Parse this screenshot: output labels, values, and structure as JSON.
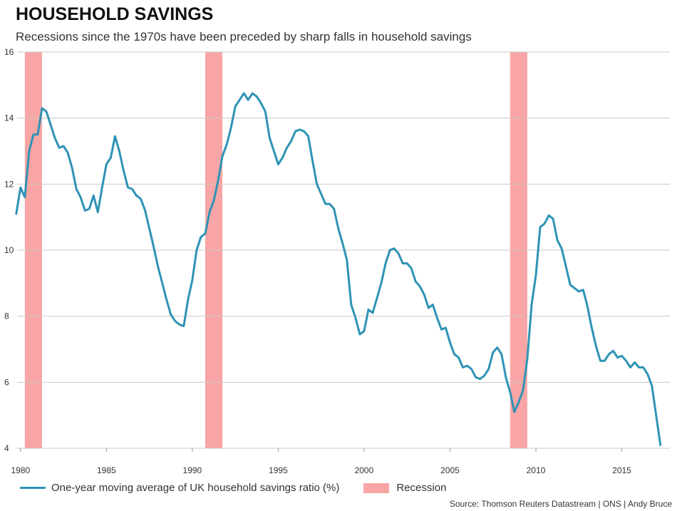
{
  "header": {
    "title": "HOUSEHOLD SAVINGS",
    "subtitle": "Recessions since the 1970s have been preceded by sharp falls in household savings"
  },
  "legend": {
    "line_label": "One-year moving average of UK household savings ratio (%)",
    "recession_label": "Recession"
  },
  "footer": {
    "source": "Source: Thomson Reuters Datastream | ONS | Andy Bruce"
  },
  "colors": {
    "line": "#2e93b5",
    "recession": "#f9a5a5",
    "grid": "#c8c8c8"
  },
  "chart_data": {
    "type": "line",
    "title": "HOUSEHOLD SAVINGS",
    "subtitle": "Recessions since the 1970s have been preceded by sharp falls in household savings",
    "xlabel": "",
    "ylabel": "",
    "xlim": [
      1979.8,
      2017.8
    ],
    "ylim": [
      4,
      16
    ],
    "xticks": [
      1980,
      1985,
      1990,
      1995,
      2000,
      2005,
      2010,
      2015
    ],
    "yticks": [
      4,
      6,
      8,
      10,
      12,
      14,
      16
    ],
    "grid": true,
    "legend_position": "bottom",
    "recessions": [
      [
        1980.25,
        1981.25
      ],
      [
        1990.75,
        1991.75
      ],
      [
        2008.5,
        2009.5
      ]
    ],
    "series": [
      {
        "name": "One-year moving average of UK household savings ratio (%)",
        "x": [
          1979.75,
          1980.0,
          1980.25,
          1980.5,
          1980.75,
          1981.0,
          1981.25,
          1981.5,
          1981.75,
          1982.0,
          1982.25,
          1982.5,
          1982.75,
          1983.0,
          1983.25,
          1983.5,
          1983.75,
          1984.0,
          1984.25,
          1984.5,
          1984.75,
          1985.0,
          1985.25,
          1985.5,
          1985.75,
          1986.0,
          1986.25,
          1986.5,
          1986.75,
          1987.0,
          1987.25,
          1987.5,
          1987.75,
          1988.0,
          1988.25,
          1988.5,
          1988.75,
          1989.0,
          1989.25,
          1989.5,
          1989.75,
          1990.0,
          1990.25,
          1990.5,
          1990.75,
          1991.0,
          1991.25,
          1991.5,
          1991.75,
          1992.0,
          1992.25,
          1992.5,
          1992.75,
          1993.0,
          1993.25,
          1993.5,
          1993.75,
          1994.0,
          1994.25,
          1994.5,
          1994.75,
          1995.0,
          1995.25,
          1995.5,
          1995.75,
          1996.0,
          1996.25,
          1996.5,
          1996.75,
          1997.0,
          1997.25,
          1997.5,
          1997.75,
          1998.0,
          1998.25,
          1998.5,
          1998.75,
          1999.0,
          1999.25,
          1999.5,
          1999.75,
          2000.0,
          2000.25,
          2000.5,
          2000.75,
          2001.0,
          2001.25,
          2001.5,
          2001.75,
          2002.0,
          2002.25,
          2002.5,
          2002.75,
          2003.0,
          2003.25,
          2003.5,
          2003.75,
          2004.0,
          2004.25,
          2004.5,
          2004.75,
          2005.0,
          2005.25,
          2005.5,
          2005.75,
          2006.0,
          2006.25,
          2006.5,
          2006.75,
          2007.0,
          2007.25,
          2007.5,
          2007.75,
          2008.0,
          2008.25,
          2008.5,
          2008.75,
          2009.0,
          2009.25,
          2009.5,
          2009.75,
          2010.0,
          2010.25,
          2010.5,
          2010.75,
          2011.0,
          2011.25,
          2011.5,
          2011.75,
          2012.0,
          2012.25,
          2012.5,
          2012.75,
          2013.0,
          2013.25,
          2013.5,
          2013.75,
          2014.0,
          2014.25,
          2014.5,
          2014.75,
          2015.0,
          2015.25,
          2015.5,
          2015.75,
          2016.0,
          2016.25,
          2016.5,
          2016.75,
          2017.0,
          2017.25
        ],
        "values": [
          11.1,
          11.9,
          11.6,
          13.0,
          13.5,
          13.5,
          14.3,
          14.2,
          13.8,
          13.4,
          13.1,
          13.15,
          12.95,
          12.5,
          11.85,
          11.6,
          11.2,
          11.25,
          11.65,
          11.15,
          11.9,
          12.6,
          12.8,
          13.45,
          13.0,
          12.4,
          11.9,
          11.85,
          11.65,
          11.55,
          11.2,
          10.65,
          10.1,
          9.5,
          9.0,
          8.5,
          8.05,
          7.85,
          7.75,
          7.7,
          8.5,
          9.1,
          10.0,
          10.4,
          10.5,
          11.15,
          11.5,
          12.1,
          12.85,
          13.2,
          13.7,
          14.35,
          14.55,
          14.75,
          14.55,
          14.75,
          14.65,
          14.45,
          14.2,
          13.4,
          13.0,
          12.6,
          12.8,
          13.1,
          13.3,
          13.6,
          13.65,
          13.6,
          13.45,
          12.7,
          12.0,
          11.7,
          11.4,
          11.4,
          11.25,
          10.65,
          10.2,
          9.7,
          8.35,
          7.95,
          7.45,
          7.55,
          8.2,
          8.1,
          8.55,
          9.0,
          9.6,
          10.0,
          10.05,
          9.9,
          9.6,
          9.6,
          9.45,
          9.05,
          8.9,
          8.65,
          8.25,
          8.35,
          7.95,
          7.6,
          7.65,
          7.2,
          6.85,
          6.75,
          6.45,
          6.5,
          6.4,
          6.15,
          6.1,
          6.2,
          6.4,
          6.9,
          7.05,
          6.85,
          6.15,
          5.7,
          5.1,
          5.4,
          5.75,
          6.7,
          8.35,
          9.25,
          10.7,
          10.8,
          11.05,
          10.95,
          10.3,
          10.05,
          9.5,
          8.95,
          8.85,
          8.75,
          8.8,
          8.3,
          7.65,
          7.1,
          6.65,
          6.65,
          6.85,
          6.95,
          6.75,
          6.8,
          6.65,
          6.45,
          6.6,
          6.45,
          6.45,
          6.25,
          5.9,
          5.0,
          4.1
        ]
      }
    ]
  }
}
